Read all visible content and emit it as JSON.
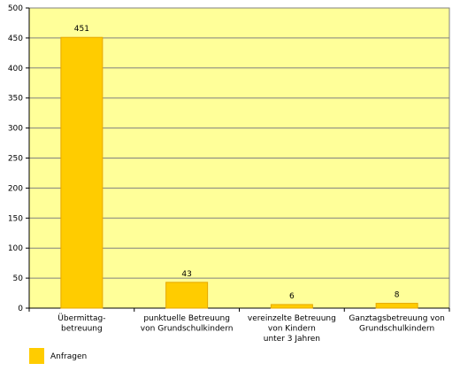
{
  "chart_data": {
    "type": "bar",
    "categories": [
      "Übermittag-\nbetreuung",
      "punktuelle Betreuung\nvon Grundschulkindern",
      "vereinzelte Betreuung\nvon Kindern\nunter 3 Jahren",
      "Ganztagsbetreuung von\nGrundschulkindern"
    ],
    "series": [
      {
        "name": "Anfragen",
        "color": "#ffcc00",
        "values": [
          451,
          43,
          6,
          8
        ]
      }
    ],
    "ylim": [
      0,
      500
    ],
    "yticks": [
      0,
      50,
      100,
      150,
      200,
      250,
      300,
      350,
      400,
      450,
      500
    ],
    "grid": true,
    "legend": "bottom-left",
    "plot_background": "#ffff99"
  }
}
